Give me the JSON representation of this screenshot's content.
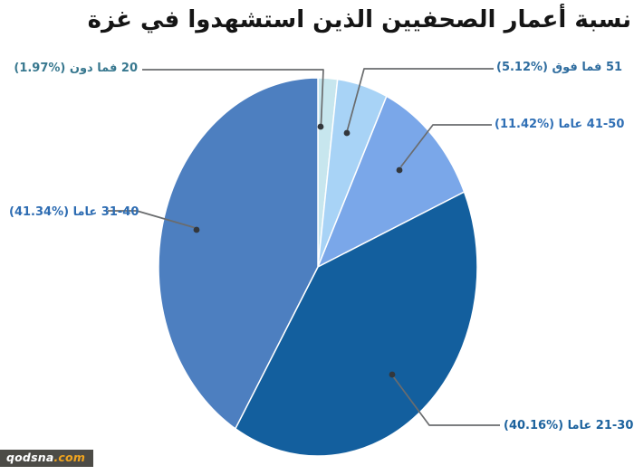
{
  "title": "نسبة أعمار الصحفيين الذين استشهدوا في غزة",
  "watermark": {
    "name": "qodsna",
    "tld": ".com"
  },
  "chart_data": {
    "type": "pie",
    "title": "نسبة أعمار الصحفيين الذين استشهدوا في غزة",
    "unit": "percent",
    "start_angle_deg": 0,
    "direction": "clockwise",
    "legend_position": "leader-line-labels",
    "slices": [
      {
        "label": "20 فما دون",
        "value": 1.97,
        "display": "20 فما دون (%1.97)",
        "color": "#c7e6ee",
        "label_color": "#38788f"
      },
      {
        "label": "51 فما فوق",
        "value": 5.12,
        "display": "51 فما فوق (%5.12)",
        "color": "#a8d3f6",
        "label_color": "#2f6d9f"
      },
      {
        "label": "41-50 عاما",
        "value": 11.42,
        "display": "41-50 عاما (%11.42)",
        "color": "#7aa7e9",
        "label_color": "#2f6fb5"
      },
      {
        "label": "21-30 عاما",
        "value": 40.16,
        "display": "21-30 عاما (%40.16)",
        "color": "#135f9e",
        "label_color": "#1d639e"
      },
      {
        "label": "31-40 عاما",
        "value": 41.34,
        "display": "31-40 عاما (%41.34)",
        "color": "#4d7fc0",
        "label_color": "#2d6cb2"
      }
    ],
    "colors": {
      "leader_line": "#6a6c6e",
      "leader_dot": "#33373c",
      "slice_border": "#ffffff",
      "background": "#ffffff"
    }
  }
}
